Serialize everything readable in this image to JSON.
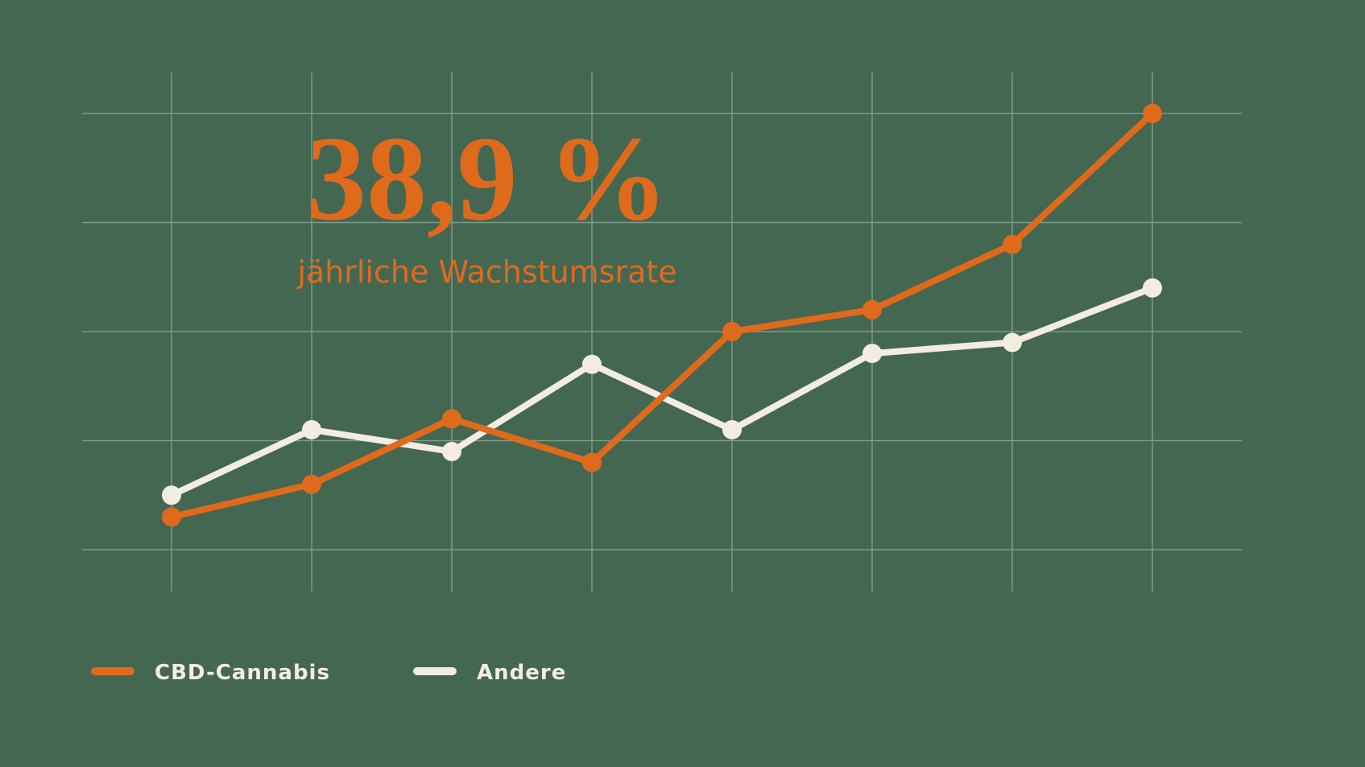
{
  "colors": {
    "background": "#446751",
    "grid": "#7E9A88",
    "accent": "#E06A1C",
    "secondary": "#F2EDE0"
  },
  "headline": {
    "value": "38,9 %",
    "caption": "jährliche Wachstumsrate"
  },
  "chart_data": {
    "type": "line",
    "x": [
      1,
      2,
      3,
      4,
      5,
      6,
      7,
      8
    ],
    "ylim": [
      0,
      4
    ],
    "grid": true,
    "legend_position": "bottom-left",
    "series": [
      {
        "name": "CBD-Cannabis",
        "color": "#E06A1C",
        "values": [
          0.3,
          0.6,
          1.2,
          0.8,
          2.0,
          2.2,
          2.8,
          4.0
        ]
      },
      {
        "name": "Andere",
        "color": "#F2EDE0",
        "values": [
          0.5,
          1.1,
          0.9,
          1.7,
          1.1,
          1.8,
          1.9,
          2.4
        ]
      }
    ]
  }
}
